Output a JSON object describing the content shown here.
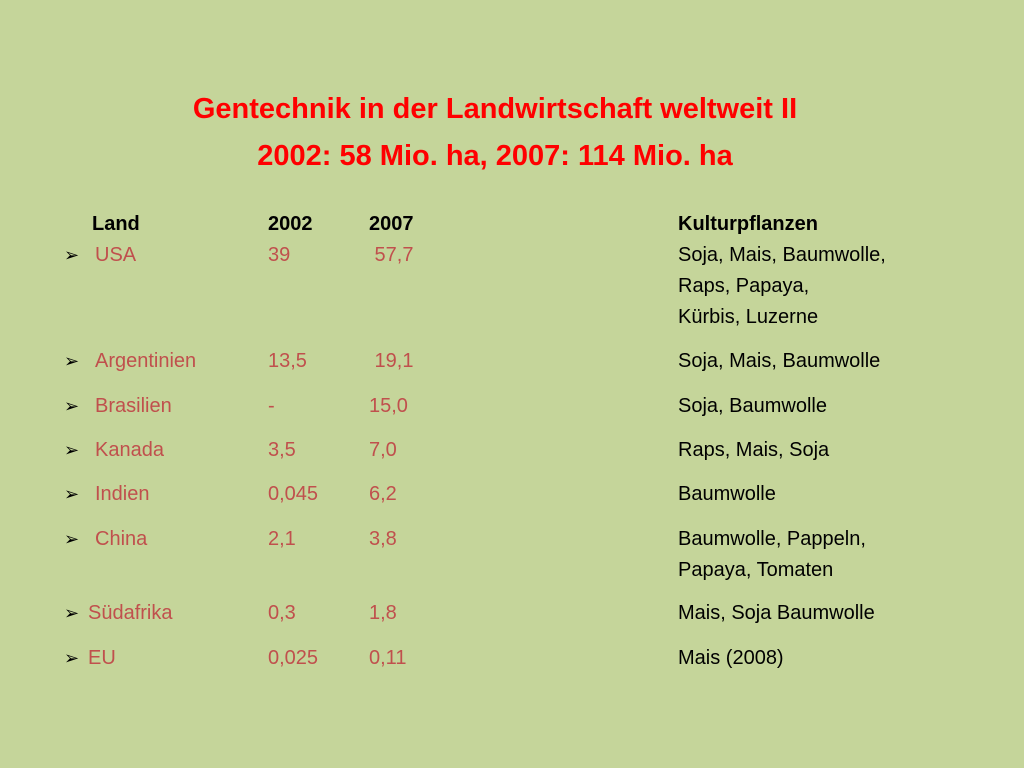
{
  "title": {
    "line1": "Gentechnik in der Landwirtschaft weltweit II",
    "line2": "2002: 58 Mio. ha, 2007: 114 Mio. ha"
  },
  "table": {
    "headers": {
      "land": "Land",
      "y2002": "2002",
      "y2007": "2007",
      "crops": "Kulturpflanzen"
    },
    "bullet_icon": "arrow-bullet-icon",
    "bullet_glyph": "➢",
    "rows": [
      {
        "land": "USA",
        "y2002": "39",
        "y2007": " 57,7",
        "crops": [
          "Soja, Mais, Baumwolle,",
          "Raps, Papaya,",
          "Kürbis, Luzerne"
        ]
      },
      {
        "land": "Argentinien",
        "y2002": "13,5",
        "y2007": " 19,1",
        "crops": [
          "Soja, Mais, Baumwolle"
        ]
      },
      {
        "land": "Brasilien",
        "y2002": "-",
        "y2007": "15,0",
        "crops": [
          "Soja, Baumwolle"
        ]
      },
      {
        "land": "Kanada",
        "y2002": "3,5",
        "y2007": "7,0",
        "crops": [
          "Raps, Mais, Soja"
        ]
      },
      {
        "land": "Indien",
        "y2002": "0,045",
        "y2007": "6,2",
        "crops": [
          "Baumwolle"
        ]
      },
      {
        "land": "China",
        "y2002": "2,1",
        "y2007": "3,8",
        "crops": [
          "Baumwolle, Pappeln,",
          "Papaya, Tomaten"
        ]
      },
      {
        "land": "Südafrika",
        "y2002": "0,3",
        "y2007": "1,8",
        "crops": [
          "Mais, Soja Baumwolle"
        ]
      },
      {
        "land": "EU",
        "y2002": "0,025",
        "y2007": "0,11",
        "crops": [
          "Mais (2008)"
        ]
      }
    ]
  }
}
